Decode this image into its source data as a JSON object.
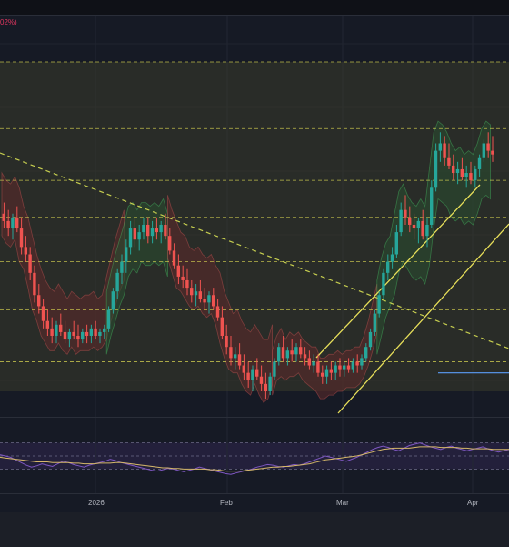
{
  "topbar": {
    "indicator_label": "02%)"
  },
  "colors": {
    "background": "#161a25",
    "up": "#26a69a",
    "down": "#ef5350",
    "channel": "#e8e05a",
    "trendline": "#c7cf4f",
    "range_fill": "#3a3d2b",
    "range_line": "#d7d450",
    "support": "#5b9cf6",
    "cloud_bull": "#2a4a30",
    "cloud_bear": "#5a2a2a",
    "rsi": "#7e57c2",
    "rsi_ma": "#d6b86a",
    "rsi_band": "#2a2445"
  },
  "chart_data": [
    {
      "type": "candlestick",
      "x_axis": {
        "tick_labels": [
          "2026",
          "Feb",
          "Mar",
          "Apr"
        ]
      },
      "price_range": [
        0,
        100
      ],
      "grid": true,
      "range_box": {
        "top": 92,
        "bottom": 3
      },
      "horizontal_levels": [
        92,
        74,
        60,
        50,
        38,
        25,
        11
      ],
      "support_line": {
        "value": 8,
        "from_index": 100,
        "to_index": 150
      },
      "series": [
        {
          "ohlc": [
            [
              51,
              54,
              47,
              49
            ],
            [
              49,
              52,
              45,
              47
            ],
            [
              47,
              51,
              44,
              50
            ],
            [
              50,
              53,
              46,
              47
            ],
            [
              47,
              50,
              40,
              42
            ],
            [
              42,
              45,
              38,
              40
            ],
            [
              40,
              42,
              33,
              35
            ],
            [
              35,
              37,
              27,
              29
            ],
            [
              29,
              32,
              24,
              26
            ],
            [
              26,
              28,
              20,
              22
            ],
            [
              22,
              25,
              18,
              20
            ],
            [
              20,
              23,
              16,
              18
            ],
            [
              18,
              22,
              16,
              21
            ],
            [
              21,
              24,
              18,
              19
            ],
            [
              19,
              22,
              16,
              17
            ],
            [
              17,
              20,
              15,
              19
            ],
            [
              19,
              22,
              17,
              18
            ],
            [
              18,
              21,
              15,
              17
            ],
            [
              17,
              20,
              16,
              19
            ],
            [
              19,
              21,
              16,
              18
            ],
            [
              18,
              21,
              16,
              20
            ],
            [
              20,
              22,
              17,
              18
            ],
            [
              18,
              20,
              16,
              19
            ],
            [
              19,
              21,
              17,
              20
            ],
            [
              20,
              26,
              19,
              25
            ],
            [
              25,
              31,
              24,
              30
            ],
            [
              30,
              36,
              28,
              35
            ],
            [
              35,
              40,
              32,
              38
            ],
            [
              38,
              44,
              35,
              42
            ],
            [
              42,
              49,
              40,
              47
            ],
            [
              47,
              50,
              42,
              44
            ],
            [
              44,
              48,
              41,
              46
            ],
            [
              46,
              50,
              44,
              48
            ],
            [
              48,
              50,
              43,
              45
            ],
            [
              45,
              49,
              43,
              47
            ],
            [
              47,
              50,
              44,
              46
            ],
            [
              46,
              49,
              43,
              48
            ],
            [
              48,
              51,
              44,
              45
            ],
            [
              45,
              47,
              40,
              41
            ],
            [
              41,
              43,
              36,
              37
            ],
            [
              37,
              40,
              32,
              34
            ],
            [
              34,
              37,
              31,
              33
            ],
            [
              33,
              36,
              29,
              31
            ],
            [
              31,
              33,
              27,
              29
            ],
            [
              29,
              32,
              26,
              30
            ],
            [
              30,
              33,
              27,
              28
            ],
            [
              28,
              31,
              25,
              27
            ],
            [
              27,
              30,
              24,
              29
            ],
            [
              29,
              31,
              25,
              26
            ],
            [
              26,
              28,
              22,
              23
            ],
            [
              23,
              26,
              17,
              18
            ],
            [
              18,
              21,
              13,
              15
            ],
            [
              15,
              18,
              10,
              12
            ],
            [
              12,
              15,
              9,
              13
            ],
            [
              13,
              16,
              9,
              10
            ],
            [
              10,
              13,
              6,
              8
            ],
            [
              8,
              11,
              4,
              6
            ],
            [
              6,
              10,
              3,
              9
            ],
            [
              9,
              12,
              6,
              7
            ],
            [
              7,
              10,
              3,
              5
            ],
            [
              5,
              8,
              1,
              3
            ],
            [
              3,
              8,
              2,
              7
            ],
            [
              7,
              12,
              6,
              11
            ],
            [
              11,
              16,
              10,
              15
            ],
            [
              15,
              18,
              11,
              12
            ],
            [
              12,
              15,
              10,
              14
            ],
            [
              14,
              17,
              11,
              13
            ],
            [
              13,
              16,
              11,
              15
            ],
            [
              15,
              17,
              12,
              13
            ],
            [
              13,
              15,
              10,
              12
            ],
            [
              12,
              14,
              9,
              10
            ],
            [
              10,
              13,
              8,
              11
            ],
            [
              11,
              13,
              7,
              8
            ],
            [
              8,
              10,
              5,
              7
            ],
            [
              7,
              10,
              5,
              9
            ],
            [
              9,
              11,
              6,
              8
            ],
            [
              8,
              11,
              6,
              10
            ],
            [
              10,
              12,
              7,
              9
            ],
            [
              9,
              11,
              7,
              10
            ],
            [
              10,
              12,
              8,
              9
            ],
            [
              9,
              12,
              8,
              11
            ],
            [
              11,
              13,
              8,
              10
            ],
            [
              10,
              13,
              9,
              12
            ],
            [
              12,
              16,
              11,
              15
            ],
            [
              15,
              20,
              14,
              19
            ],
            [
              19,
              25,
              18,
              24
            ],
            [
              24,
              30,
              23,
              29
            ],
            [
              29,
              36,
              28,
              35
            ],
            [
              35,
              40,
              33,
              38
            ],
            [
              38,
              42,
              36,
              40
            ],
            [
              40,
              48,
              39,
              46
            ],
            [
              46,
              54,
              45,
              52
            ],
            [
              52,
              56,
              48,
              50
            ],
            [
              50,
              53,
              46,
              48
            ],
            [
              48,
              51,
              44,
              47
            ],
            [
              47,
              50,
              43,
              49
            ],
            [
              49,
              52,
              44,
              45
            ],
            [
              45,
              50,
              42,
              48
            ],
            [
              48,
              60,
              47,
              58
            ],
            [
              58,
              70,
              57,
              68
            ],
            [
              68,
              73,
              65,
              70
            ],
            [
              70,
              72,
              64,
              66
            ],
            [
              66,
              70,
              63,
              64
            ],
            [
              64,
              67,
              60,
              62
            ],
            [
              62,
              65,
              59,
              63
            ],
            [
              63,
              66,
              60,
              61
            ],
            [
              61,
              64,
              58,
              62
            ],
            [
              62,
              65,
              59,
              60
            ],
            [
              60,
              64,
              58,
              63
            ],
            [
              63,
              67,
              61,
              66
            ],
            [
              66,
              71,
              65,
              70
            ],
            [
              70,
              73,
              66,
              68
            ],
            [
              68,
              72,
              65,
              67
            ]
          ]
        }
      ]
    },
    {
      "type": "line",
      "series": [
        {
          "values": [
            52,
            50,
            48,
            44,
            40,
            36,
            33,
            35,
            38,
            36,
            34,
            38,
            42,
            40,
            37,
            35,
            33,
            36,
            38,
            40,
            42,
            45,
            43,
            40,
            38,
            36,
            34,
            32,
            30,
            28,
            27,
            29,
            31,
            30,
            28,
            26,
            28,
            30,
            33,
            31,
            29,
            27,
            25,
            23,
            22,
            24,
            26,
            28,
            30,
            33,
            35,
            37,
            36,
            34,
            33,
            35,
            37,
            36,
            38,
            41,
            44,
            47,
            50,
            48,
            46,
            44,
            42,
            45,
            48,
            52,
            56,
            60,
            63,
            65,
            63,
            60,
            58,
            62,
            66,
            68,
            70,
            67,
            64,
            62,
            60,
            63,
            65,
            62,
            60,
            58,
            60,
            62,
            64,
            61,
            58,
            56,
            58,
            60
          ]
        },
        {
          "values": [
            48,
            47,
            46,
            45,
            44,
            43,
            42,
            41,
            41,
            41,
            40,
            40,
            40,
            40,
            39,
            39,
            38,
            38,
            38,
            39,
            39,
            39,
            40,
            40,
            39,
            38,
            37,
            36,
            35,
            34,
            33,
            32,
            32,
            31,
            31,
            30,
            30,
            30,
            30,
            30,
            29,
            29,
            28,
            27,
            27,
            27,
            27,
            28,
            29,
            30,
            31,
            32,
            33,
            33,
            34,
            34,
            35,
            36,
            37,
            38,
            40,
            42,
            44,
            45,
            46,
            47,
            48,
            49,
            50,
            52,
            54,
            56,
            58,
            60,
            61,
            62,
            62,
            62,
            62,
            63,
            64,
            64,
            64,
            64,
            63,
            63,
            63,
            63,
            62,
            62,
            61,
            61,
            61,
            61,
            60,
            60,
            60,
            60
          ]
        }
      ],
      "y_range": [
        0,
        100
      ],
      "band": [
        30,
        70
      ],
      "grid": true
    }
  ]
}
